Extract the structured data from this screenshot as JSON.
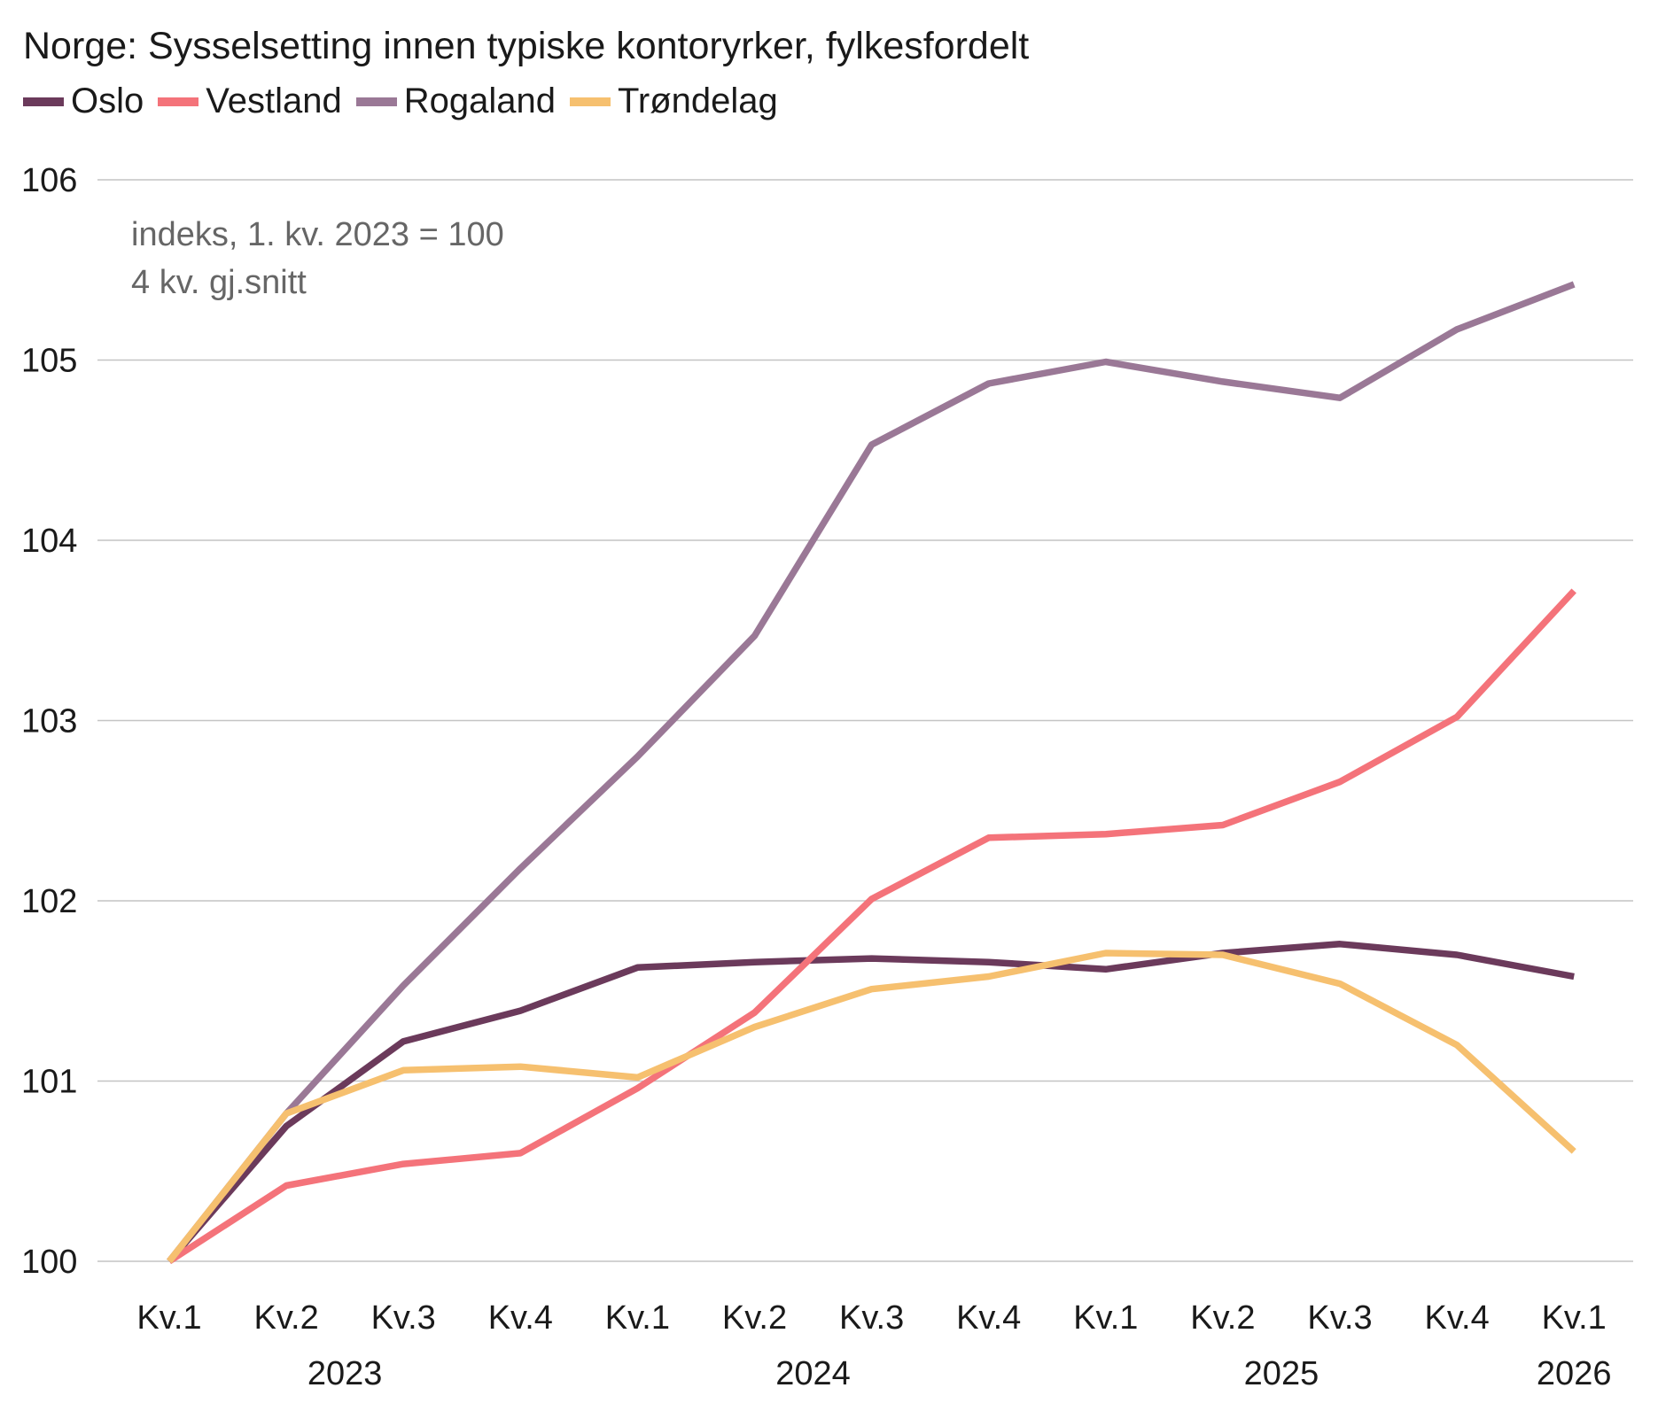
{
  "chart_data": {
    "type": "line",
    "title": "Norge: Sysselsetting innen typiske kontoryrker, fylkesfordelt",
    "notes": [
      "indeks, 1. kv. 2023 = 100",
      "4 kv. gj.snitt"
    ],
    "categories": [
      "Kv.1",
      "Kv.2",
      "Kv.3",
      "Kv.4",
      "Kv.1",
      "Kv.2",
      "Kv.3",
      "Kv.4",
      "Kv.1",
      "Kv.2",
      "Kv.3",
      "Kv.4",
      "Kv.1"
    ],
    "year_labels": [
      {
        "label": "2023",
        "index": 1.5
      },
      {
        "label": "2024",
        "index": 5.5
      },
      {
        "label": "2025",
        "index": 9.5
      },
      {
        "label": "2026",
        "index": 12
      }
    ],
    "ylim": [
      100,
      106
    ],
    "yticks": [
      100,
      101,
      102,
      103,
      104,
      105,
      106
    ],
    "grid": true,
    "legend_position": "top-left",
    "series": [
      {
        "name": "Oslo",
        "color": "#6b3a5b",
        "values": [
          100.0,
          100.75,
          101.22,
          101.39,
          101.63,
          101.66,
          101.68,
          101.66,
          101.62,
          101.71,
          101.76,
          101.7,
          101.58
        ]
      },
      {
        "name": "Vestland",
        "color": "#f4737a",
        "values": [
          100.0,
          100.42,
          100.54,
          100.6,
          100.96,
          101.38,
          102.01,
          102.35,
          102.37,
          102.42,
          102.66,
          103.02,
          103.72
        ]
      },
      {
        "name": "Rogaland",
        "color": "#9a7896",
        "values": [
          100.0,
          100.82,
          101.53,
          102.18,
          102.8,
          103.47,
          104.53,
          104.87,
          104.99,
          104.88,
          104.79,
          105.17,
          105.42
        ]
      },
      {
        "name": "Trøndelag",
        "color": "#f6c06f",
        "values": [
          100.0,
          100.82,
          101.06,
          101.08,
          101.02,
          101.3,
          101.51,
          101.58,
          101.71,
          101.7,
          101.54,
          101.2,
          100.61
        ]
      }
    ]
  }
}
